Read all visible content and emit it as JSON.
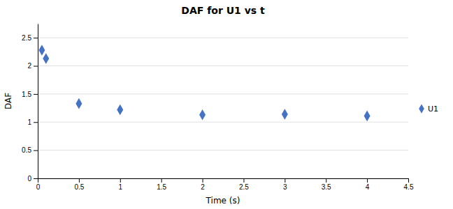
{
  "chart_data": {
    "type": "scatter",
    "title": "DAF for U1 vs t",
    "xlabel": "Time (s)",
    "ylabel": "DAF",
    "x": [
      0.05,
      0.1,
      0.5,
      1.0,
      2.0,
      3.0,
      4.0
    ],
    "series": [
      {
        "name": "U1",
        "color": "#4472C4",
        "marker": "diamond",
        "values": [
          2.28,
          2.13,
          1.33,
          1.22,
          1.13,
          1.14,
          1.11
        ]
      }
    ],
    "xlim": [
      0,
      4.5
    ],
    "ylim": [
      0,
      2.75
    ],
    "xticks": [
      0,
      0.5,
      1,
      1.5,
      2,
      2.5,
      3,
      3.5,
      4,
      4.5
    ],
    "yticks": [
      0,
      0.5,
      1,
      1.5,
      2,
      2.5
    ],
    "grid": true,
    "legend": "right"
  }
}
